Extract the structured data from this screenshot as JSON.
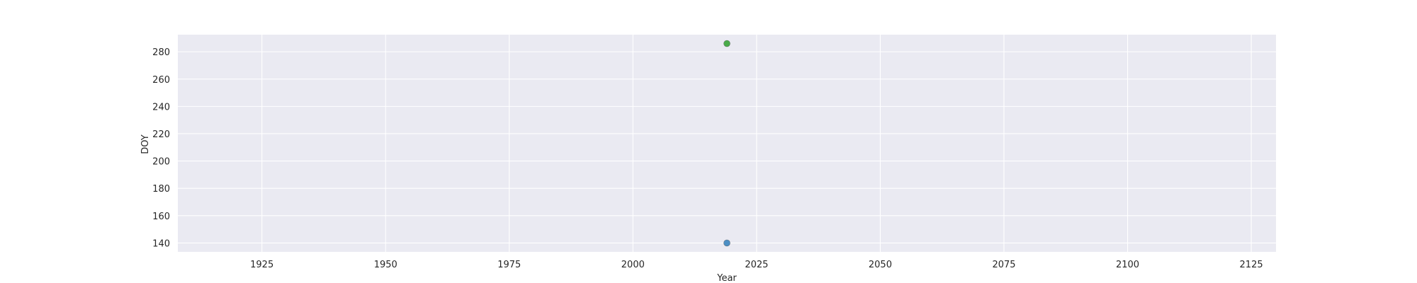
{
  "chart_data": {
    "type": "scatter",
    "title": "",
    "xlabel": "Year",
    "ylabel": "DOY",
    "xlim": [
      1908,
      2130
    ],
    "ylim": [
      133.5,
      292.5
    ],
    "xticks": [
      1925,
      1950,
      1975,
      2000,
      2025,
      2050,
      2075,
      2100,
      2125
    ],
    "yticks": [
      140,
      160,
      180,
      200,
      220,
      240,
      260,
      280
    ],
    "grid": true,
    "legend": "none",
    "colors": {
      "background": "#eaeaf2",
      "grid": "#ffffff"
    },
    "series": [
      {
        "color": "#4c8fc4",
        "points": [
          {
            "x": 2019,
            "y": 140
          }
        ]
      },
      {
        "color": "#4aab4a",
        "points": [
          {
            "x": 2019,
            "y": 286
          }
        ]
      }
    ]
  }
}
